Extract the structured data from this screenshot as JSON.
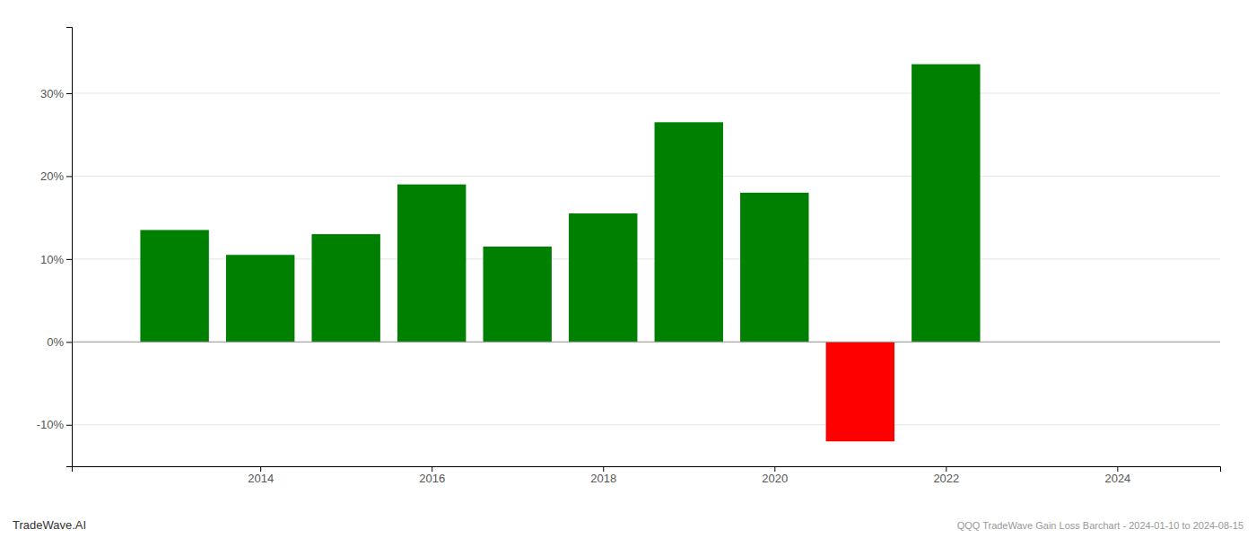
{
  "chart_data": {
    "type": "bar",
    "x": [
      2013,
      2014,
      2015,
      2016,
      2017,
      2018,
      2019,
      2020,
      2021,
      2022
    ],
    "values": [
      13.5,
      10.5,
      13.0,
      19.0,
      11.5,
      15.5,
      26.5,
      18.0,
      -12.0,
      33.5
    ],
    "colors": [
      "#008000",
      "#008000",
      "#008000",
      "#008000",
      "#008000",
      "#008000",
      "#008000",
      "#008000",
      "#ff0000",
      "#008000"
    ],
    "xlim": [
      2011.8,
      2025.2
    ],
    "xticks": [
      2014,
      2016,
      2018,
      2020,
      2022,
      2024
    ],
    "ylim": [
      -15,
      38
    ],
    "yticks": [
      {
        "value": -10,
        "label": "-10%"
      },
      {
        "value": 0,
        "label": "0%"
      },
      {
        "value": 10,
        "label": "10%"
      },
      {
        "value": 20,
        "label": "20%"
      },
      {
        "value": 30,
        "label": "30%"
      }
    ],
    "grid": true,
    "annotations": [
      "TradeWave.AI",
      "QQQ TradeWave Gain Loss Barchart - 2024-01-10 to 2024-08-15"
    ]
  }
}
